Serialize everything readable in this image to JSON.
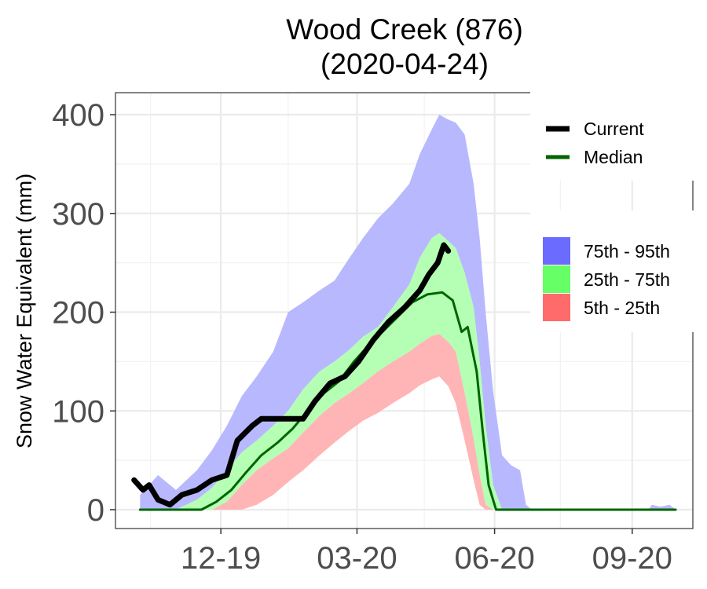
{
  "chart_data": {
    "type": "area",
    "title_line1": "Wood Creek (876)",
    "title_line2": "(2020-04-24)",
    "ylabel": "Snow Water Equivalent (mm)",
    "xlabel": "",
    "ylim": [
      0,
      400
    ],
    "y_ticks": [
      0,
      100,
      200,
      300,
      400
    ],
    "y_tick_labels": [
      "0",
      "100",
      "200",
      "300",
      "400"
    ],
    "x_range": [
      "2019-10-01",
      "2020-09-30"
    ],
    "x_ticks": [
      "2019-12-01",
      "2020-03-01",
      "2020-06-01",
      "2020-09-01"
    ],
    "x_tick_labels": [
      "12-19",
      "03-20",
      "06-20",
      "09-20"
    ],
    "x_minor_ticks": [
      "2019-10-15",
      "2020-01-15",
      "2020-04-15",
      "2020-07-15"
    ],
    "grid": true,
    "legend_placement": "right",
    "legend_lines": [
      {
        "label": "Current",
        "color": "#000000"
      },
      {
        "label": "Median",
        "color": "#006400"
      }
    ],
    "legend_bands": [
      {
        "label": "75th - 95th",
        "color": "#6b6bff"
      },
      {
        "label": "25th - 75th",
        "color": "#66ff66"
      },
      {
        "label": "5th - 25th",
        "color": "#ff6b6b"
      }
    ],
    "colors": {
      "band_75_95": "#b8b8ff",
      "band_25_75": "#b5ffb5",
      "band_5_25": "#ffb5b5",
      "current": "#000000",
      "median": "#006400"
    },
    "bands": [
      {
        "date": "2019-10-08",
        "p5": 0,
        "p25": 0,
        "p75": 0,
        "p95": 15
      },
      {
        "date": "2019-10-20",
        "p5": 0,
        "p25": 0,
        "p75": 0,
        "p95": 35
      },
      {
        "date": "2019-11-01",
        "p5": 0,
        "p25": 0,
        "p75": 0,
        "p95": 20
      },
      {
        "date": "2019-11-15",
        "p5": 0,
        "p25": 0,
        "p75": 10,
        "p95": 40
      },
      {
        "date": "2019-11-25",
        "p5": 0,
        "p25": 0,
        "p75": 22,
        "p95": 60
      },
      {
        "date": "2019-12-05",
        "p5": 0,
        "p25": 8,
        "p75": 40,
        "p95": 85
      },
      {
        "date": "2019-12-15",
        "p5": 0,
        "p25": 25,
        "p75": 58,
        "p95": 115
      },
      {
        "date": "2019-12-25",
        "p5": 5,
        "p25": 40,
        "p75": 70,
        "p95": 135
      },
      {
        "date": "2020-01-05",
        "p5": 15,
        "p25": 52,
        "p75": 85,
        "p95": 160
      },
      {
        "date": "2020-01-15",
        "p5": 28,
        "p25": 62,
        "p75": 100,
        "p95": 200
      },
      {
        "date": "2020-01-25",
        "p5": 40,
        "p25": 78,
        "p75": 122,
        "p95": 210
      },
      {
        "date": "2020-02-05",
        "p5": 55,
        "p25": 95,
        "p75": 140,
        "p95": 222
      },
      {
        "date": "2020-02-15",
        "p5": 68,
        "p25": 108,
        "p75": 150,
        "p95": 232
      },
      {
        "date": "2020-02-25",
        "p5": 80,
        "p25": 118,
        "p75": 162,
        "p95": 255
      },
      {
        "date": "2020-03-05",
        "p5": 90,
        "p25": 128,
        "p75": 175,
        "p95": 275
      },
      {
        "date": "2020-03-15",
        "p5": 98,
        "p25": 140,
        "p75": 185,
        "p95": 295
      },
      {
        "date": "2020-03-25",
        "p5": 108,
        "p25": 150,
        "p75": 205,
        "p95": 310
      },
      {
        "date": "2020-04-05",
        "p5": 118,
        "p25": 160,
        "p75": 228,
        "p95": 330
      },
      {
        "date": "2020-04-12",
        "p5": 126,
        "p25": 168,
        "p75": 255,
        "p95": 360
      },
      {
        "date": "2020-04-20",
        "p5": 132,
        "p25": 176,
        "p75": 275,
        "p95": 385
      },
      {
        "date": "2020-04-25",
        "p5": 135,
        "p25": 178,
        "p75": 280,
        "p95": 400
      },
      {
        "date": "2020-05-01",
        "p5": 125,
        "p25": 170,
        "p75": 272,
        "p95": 395
      },
      {
        "date": "2020-05-06",
        "p5": 108,
        "p25": 160,
        "p75": 265,
        "p95": 392
      },
      {
        "date": "2020-05-12",
        "p5": 70,
        "p25": 118,
        "p75": 240,
        "p95": 380
      },
      {
        "date": "2020-05-18",
        "p5": 30,
        "p25": 72,
        "p75": 205,
        "p95": 330
      },
      {
        "date": "2020-05-22",
        "p5": 5,
        "p25": 35,
        "p75": 150,
        "p95": 275
      },
      {
        "date": "2020-05-26",
        "p5": 0,
        "p25": 5,
        "p75": 85,
        "p95": 200
      },
      {
        "date": "2020-05-31",
        "p5": 0,
        "p25": 0,
        "p75": 25,
        "p95": 120
      },
      {
        "date": "2020-06-06",
        "p5": 0,
        "p25": 0,
        "p75": 0,
        "p95": 55
      },
      {
        "date": "2020-06-12",
        "p5": 0,
        "p25": 0,
        "p75": 0,
        "p95": 45
      },
      {
        "date": "2020-06-18",
        "p5": 0,
        "p25": 0,
        "p75": 0,
        "p95": 40
      },
      {
        "date": "2020-06-22",
        "p5": 0,
        "p25": 0,
        "p75": 0,
        "p95": 5
      },
      {
        "date": "2020-06-26",
        "p5": 0,
        "p25": 0,
        "p75": 0,
        "p95": 0
      },
      {
        "date": "2020-09-12",
        "p5": 0,
        "p25": 0,
        "p75": 0,
        "p95": 0
      },
      {
        "date": "2020-09-14",
        "p5": 0,
        "p25": 0,
        "p75": 0,
        "p95": 5
      },
      {
        "date": "2020-09-20",
        "p5": 0,
        "p25": 0,
        "p75": 0,
        "p95": 3
      },
      {
        "date": "2020-09-26",
        "p5": 0,
        "p25": 0,
        "p75": 0,
        "p95": 5
      },
      {
        "date": "2020-09-30",
        "p5": 0,
        "p25": 0,
        "p75": 0,
        "p95": 0
      }
    ],
    "series": [
      {
        "name": "Median",
        "points": [
          [
            "2019-10-08",
            0
          ],
          [
            "2019-11-01",
            0
          ],
          [
            "2019-11-18",
            0
          ],
          [
            "2019-11-28",
            8
          ],
          [
            "2019-12-08",
            20
          ],
          [
            "2019-12-18",
            38
          ],
          [
            "2019-12-28",
            55
          ],
          [
            "2020-01-08",
            68
          ],
          [
            "2020-01-18",
            82
          ],
          [
            "2020-01-28",
            100
          ],
          [
            "2020-02-08",
            118
          ],
          [
            "2020-02-18",
            130
          ],
          [
            "2020-02-28",
            150
          ],
          [
            "2020-03-08",
            165
          ],
          [
            "2020-03-18",
            180
          ],
          [
            "2020-03-28",
            195
          ],
          [
            "2020-04-07",
            210
          ],
          [
            "2020-04-17",
            218
          ],
          [
            "2020-04-27",
            220
          ],
          [
            "2020-05-04",
            212
          ],
          [
            "2020-05-10",
            180
          ],
          [
            "2020-05-14",
            185
          ],
          [
            "2020-05-20",
            140
          ],
          [
            "2020-05-24",
            80
          ],
          [
            "2020-05-28",
            25
          ],
          [
            "2020-06-02",
            0
          ],
          [
            "2020-09-30",
            0
          ]
        ]
      },
      {
        "name": "Current",
        "points": [
          [
            "2019-10-04",
            30
          ],
          [
            "2019-10-10",
            20
          ],
          [
            "2019-10-14",
            25
          ],
          [
            "2019-10-20",
            10
          ],
          [
            "2019-10-28",
            5
          ],
          [
            "2019-11-05",
            15
          ],
          [
            "2019-11-15",
            20
          ],
          [
            "2019-11-25",
            30
          ],
          [
            "2019-12-05",
            35
          ],
          [
            "2019-12-12",
            70
          ],
          [
            "2019-12-22",
            85
          ],
          [
            "2019-12-28",
            92
          ],
          [
            "2020-01-25",
            92
          ],
          [
            "2020-02-02",
            110
          ],
          [
            "2020-02-12",
            128
          ],
          [
            "2020-02-22",
            135
          ],
          [
            "2020-03-02",
            150
          ],
          [
            "2020-03-12",
            172
          ],
          [
            "2020-03-22",
            190
          ],
          [
            "2020-04-02",
            205
          ],
          [
            "2020-04-12",
            222
          ],
          [
            "2020-04-18",
            238
          ],
          [
            "2020-04-24",
            250
          ],
          [
            "2020-04-28",
            268
          ],
          [
            "2020-05-01",
            262
          ]
        ]
      }
    ]
  }
}
